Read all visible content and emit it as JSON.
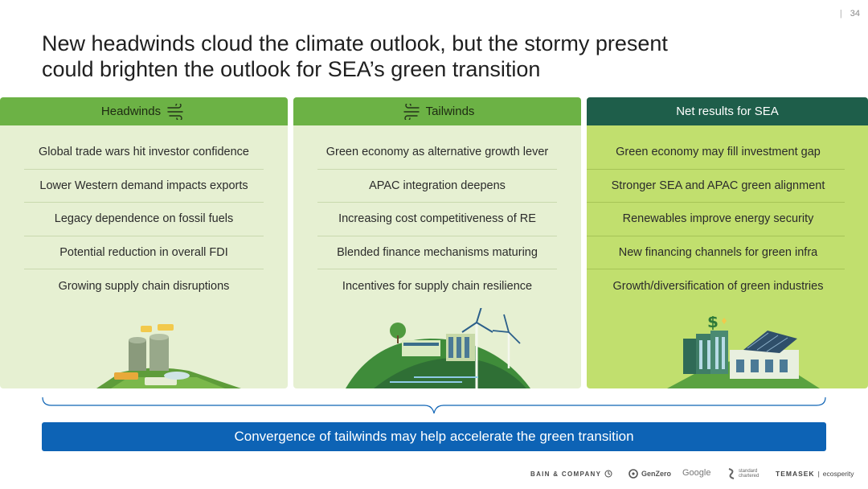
{
  "page_number": "34",
  "title": {
    "line1": "New headwinds cloud the climate outlook, but the stormy present",
    "line2": "could brighten the outlook for SEA’s green transition"
  },
  "columns": [
    {
      "header": "Headwinds",
      "icon": "wind-icon",
      "items": [
        "Global trade wars hit investor confidence",
        "Lower Western demand impacts exports",
        "Legacy dependence on fossil fuels",
        "Potential reduction in overall FDI",
        "Growing supply chain disruptions"
      ],
      "illustration": "coal-power-plant-illustration"
    },
    {
      "header": "Tailwinds",
      "icon": "wind-icon",
      "items": [
        "Green economy as alternative growth lever",
        "APAC integration deepens",
        "Increasing cost competitiveness of RE",
        "Blended finance mechanisms maturing",
        "Incentives for supply chain resilience"
      ],
      "illustration": "wind-turbine-hill-illustration"
    },
    {
      "header": "Net results for SEA",
      "items": [
        "Green economy may fill investment gap",
        "Stronger SEA and APAC green alignment",
        "Renewables improve energy security",
        "New financing channels for green infra",
        "Growth/diversification of green industries"
      ],
      "illustration": "green-building-solar-illustration"
    }
  ],
  "banner": "Convergence of tailwinds may help accelerate the green transition",
  "logos": {
    "bain": "BAIN & COMPANY",
    "genzero": "GenZero",
    "google": "Google",
    "sc_line1": "standard",
    "sc_line2": "chartered",
    "temasek": "TEMASEK",
    "ecosperity": "ecosperity"
  },
  "colors": {
    "light_column": "#e6f0d2",
    "green_header": "#6cb245",
    "dark_header": "#1e5e4a",
    "net_column": "#c1df6e",
    "banner": "#0d63b5"
  }
}
